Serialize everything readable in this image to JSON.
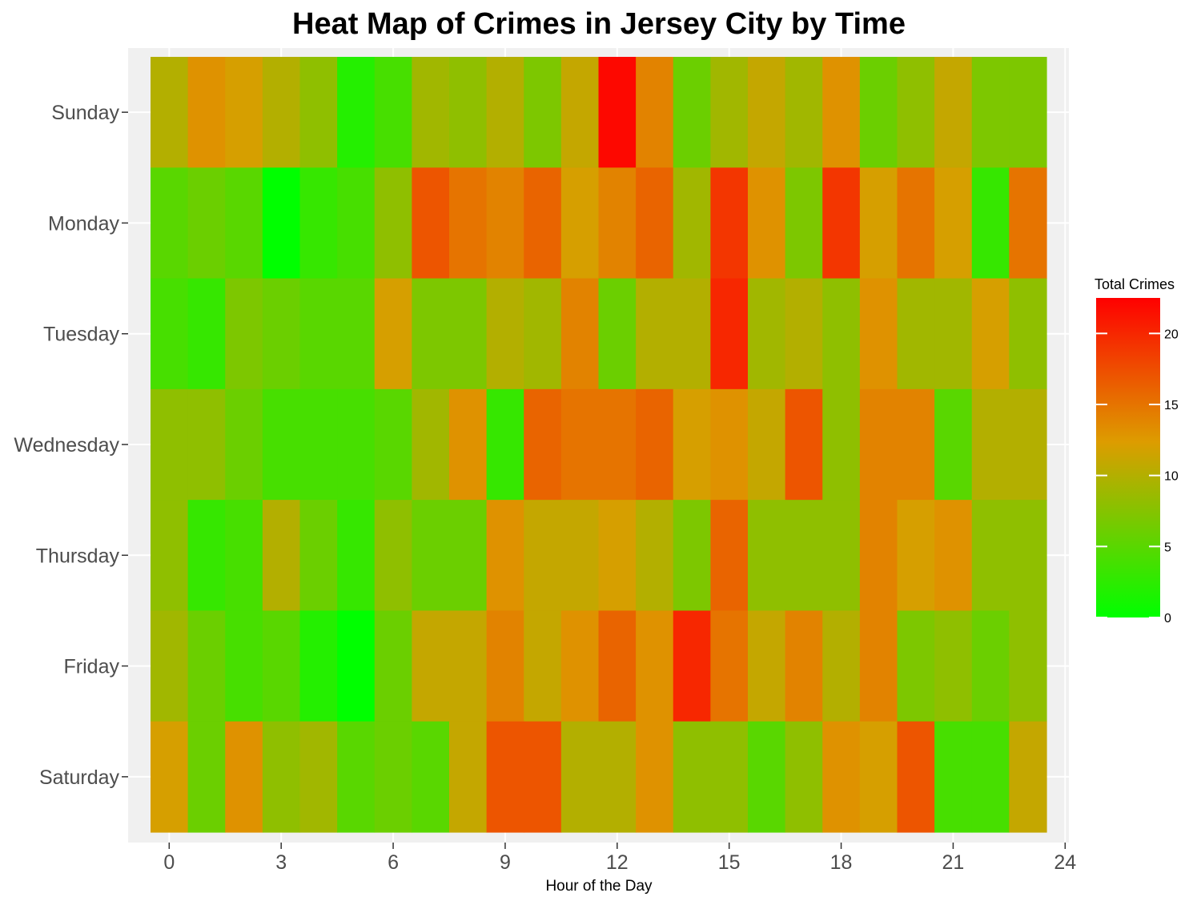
{
  "chart_data": {
    "type": "heatmap",
    "title": "Heat Map of Crimes in Jersey City by Time",
    "xlabel": "Hour of the Day",
    "ylabel": "",
    "x": [
      0,
      1,
      2,
      3,
      4,
      5,
      6,
      7,
      8,
      9,
      10,
      11,
      12,
      13,
      14,
      15,
      16,
      17,
      18,
      19,
      20,
      21,
      22,
      23
    ],
    "x_ticks": [
      0,
      3,
      6,
      9,
      12,
      15,
      18,
      21,
      24
    ],
    "xlim": [
      -0.5,
      24
    ],
    "days": [
      "Sunday",
      "Monday",
      "Tuesday",
      "Wednesday",
      "Thursday",
      "Friday",
      "Saturday"
    ],
    "values": [
      [
        10,
        13,
        12,
        10,
        8,
        2,
        4,
        9,
        8,
        10,
        7,
        11,
        22,
        14,
        6,
        9,
        11,
        9,
        13,
        6,
        8,
        11,
        7,
        7
      ],
      [
        5,
        6,
        5,
        0,
        3,
        4,
        8,
        17,
        15,
        14,
        16,
        12,
        14,
        16,
        9,
        19,
        13,
        7,
        19,
        12,
        15,
        12,
        3,
        15
      ],
      [
        4,
        3,
        7,
        6,
        5,
        5,
        12,
        7,
        7,
        10,
        9,
        14,
        6,
        10,
        10,
        20,
        9,
        10,
        8,
        13,
        9,
        9,
        12,
        8
      ],
      [
        8,
        8,
        6,
        4,
        4,
        4,
        5,
        9,
        13,
        3,
        16,
        15,
        15,
        16,
        12,
        13,
        11,
        17,
        8,
        14,
        14,
        5,
        10,
        10
      ],
      [
        8,
        3,
        4,
        10,
        6,
        3,
        8,
        6,
        6,
        13,
        11,
        11,
        12,
        10,
        7,
        16,
        8,
        8,
        8,
        14,
        12,
        13,
        8,
        8
      ],
      [
        9,
        6,
        4,
        5,
        2,
        0,
        6,
        11,
        11,
        14,
        11,
        13,
        16,
        13,
        20,
        15,
        11,
        14,
        10,
        14,
        7,
        8,
        6,
        8
      ],
      [
        12,
        6,
        13,
        8,
        9,
        5,
        6,
        5,
        11,
        17,
        17,
        10,
        10,
        13,
        8,
        8,
        5,
        8,
        13,
        12,
        17,
        4,
        4,
        11
      ]
    ],
    "legend": {
      "title": "Total Crimes",
      "ticks": [
        0,
        5,
        10,
        15,
        20
      ],
      "min": 0,
      "max": 22.5,
      "color_low": "#00ff00",
      "color_mid": "#dd9c00",
      "color_high": "#ff0000"
    },
    "grid": true,
    "legend_position": "right"
  }
}
